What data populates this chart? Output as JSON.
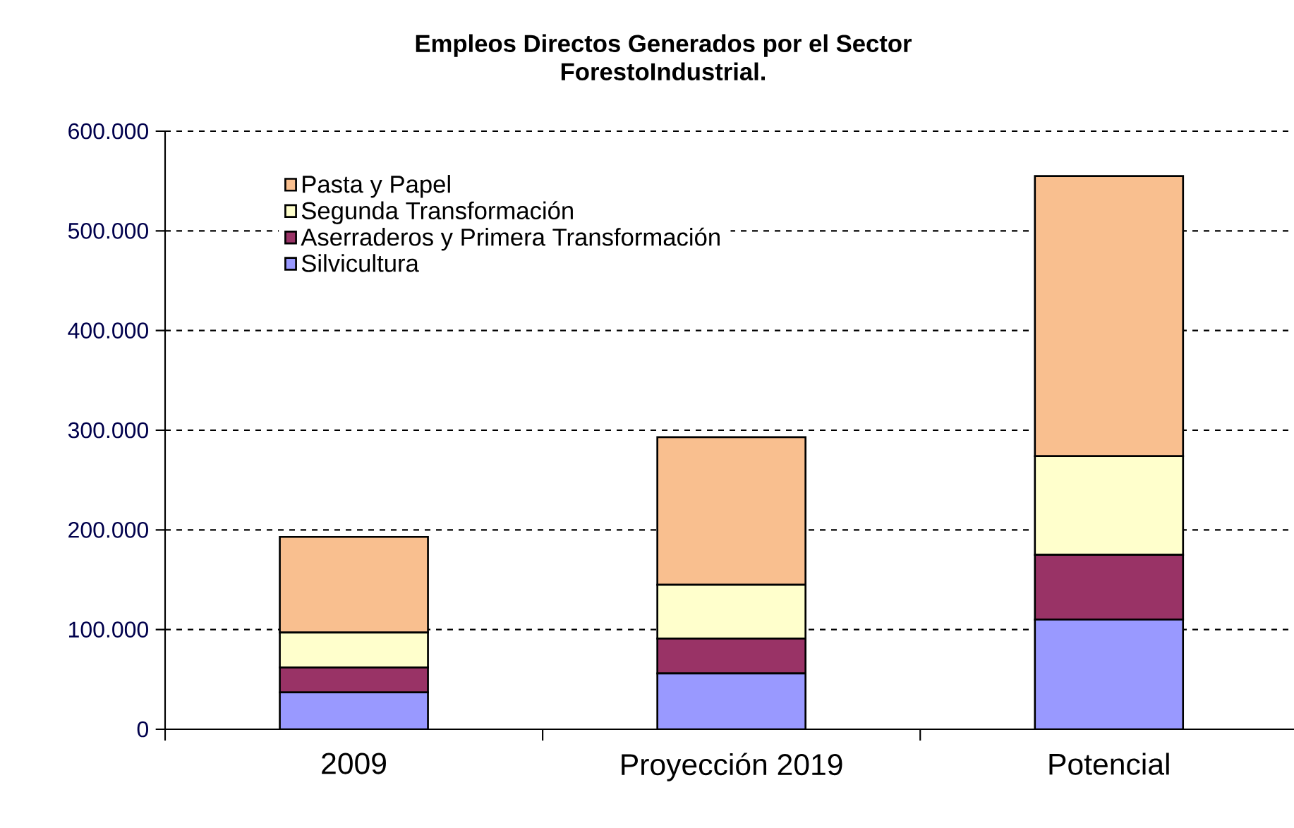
{
  "chart_data": {
    "type": "bar",
    "stacked": true,
    "title": "Empleos Directos  Generados  por el  Sector\nForestoIndustrial.",
    "categories": [
      "2009",
      "Proyección 2019",
      "Potencial"
    ],
    "series": [
      {
        "name": "Silvicultura",
        "color": "#9999ff",
        "values": [
          37000,
          56000,
          110000
        ]
      },
      {
        "name": "Aserraderos y Primera Transformación",
        "color": "#993366",
        "values": [
          25000,
          35000,
          65000
        ]
      },
      {
        "name": "Segunda Transformación",
        "color": "#ffffcc",
        "values": [
          35000,
          54000,
          99000
        ]
      },
      {
        "name": "Pasta y Papel",
        "color": "#f9bf8f",
        "values": [
          96000,
          148000,
          281000
        ]
      }
    ],
    "ylim": [
      0,
      600000
    ],
    "yticks": [
      {
        "value": 0,
        "label": "0"
      },
      {
        "value": 100000,
        "label": "100.000"
      },
      {
        "value": 200000,
        "label": "200.000"
      },
      {
        "value": 300000,
        "label": "300.000"
      },
      {
        "value": 400000,
        "label": "400.000"
      },
      {
        "value": 500000,
        "label": "500.000"
      },
      {
        "value": 600000,
        "label": "600.000"
      }
    ],
    "grid": "y",
    "legend": "top left"
  }
}
